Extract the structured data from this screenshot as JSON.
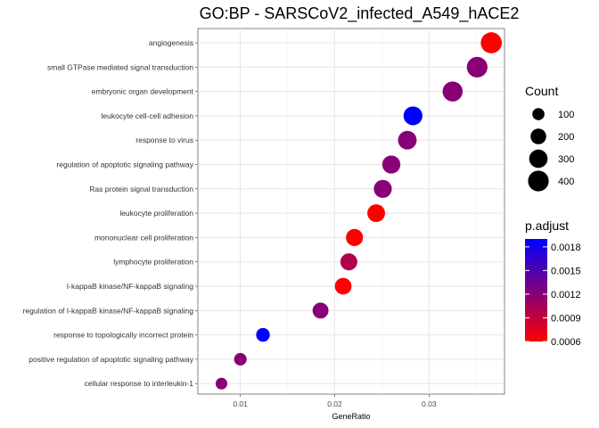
{
  "chart_data": {
    "type": "scatter",
    "title": "GO:BP - SARSCoV2_infected_A549_hACE2",
    "xlabel": "GeneRatio",
    "ylabel": "",
    "xlim": [
      0.0055,
      0.038
    ],
    "x_ticks": [
      0.01,
      0.02,
      0.03
    ],
    "x_tick_labels": [
      "0.01",
      "0.02",
      "0.03"
    ],
    "grid": true,
    "categories": [
      "angiogenesis",
      "small GTPase mediated signal transduction",
      "embryonic organ development",
      "leukocyte cell-cell adhesion",
      "response to virus",
      "regulation of apoptotic signaling pathway",
      "Ras protein signal transduction",
      "leukocyte proliferation",
      "mononuclear cell proliferation",
      "lymphocyte proliferation",
      "I-kappaB kinase/NF-kappaB signaling",
      "regulation of I-kappaB kinase/NF-kappaB signaling",
      "response to topologically incorrect protein",
      "positive regulation of apoptotic signaling pathway",
      "cellular response to interleukin-1"
    ],
    "points": [
      {
        "term": "angiogenesis",
        "gene_ratio": 0.0366,
        "count": 420,
        "p_adjust": 0.0006
      },
      {
        "term": "small GTPase mediated signal transduction",
        "gene_ratio": 0.0351,
        "count": 400,
        "p_adjust": 0.0012
      },
      {
        "term": "embryonic organ development",
        "gene_ratio": 0.0325,
        "count": 370,
        "p_adjust": 0.0012
      },
      {
        "term": "leukocyte cell-cell adhesion",
        "gene_ratio": 0.0283,
        "count": 320,
        "p_adjust": 0.0019
      },
      {
        "term": "response to virus",
        "gene_ratio": 0.0277,
        "count": 310,
        "p_adjust": 0.0012
      },
      {
        "term": "regulation of apoptotic signaling pathway",
        "gene_ratio": 0.026,
        "count": 290,
        "p_adjust": 0.0012
      },
      {
        "term": "Ras protein signal transduction",
        "gene_ratio": 0.0251,
        "count": 285,
        "p_adjust": 0.0012
      },
      {
        "term": "leukocyte proliferation",
        "gene_ratio": 0.0244,
        "count": 275,
        "p_adjust": 0.0006
      },
      {
        "term": "mononuclear cell proliferation",
        "gene_ratio": 0.0221,
        "count": 250,
        "p_adjust": 0.0006
      },
      {
        "term": "lymphocyte proliferation",
        "gene_ratio": 0.0215,
        "count": 245,
        "p_adjust": 0.001
      },
      {
        "term": "I-kappaB kinase/NF-kappaB signaling",
        "gene_ratio": 0.0209,
        "count": 235,
        "p_adjust": 0.0006
      },
      {
        "term": "regulation of I-kappaB kinase/NF-kappaB signaling",
        "gene_ratio": 0.0185,
        "count": 210,
        "p_adjust": 0.0012
      },
      {
        "term": "response to topologically incorrect protein",
        "gene_ratio": 0.0124,
        "count": 140,
        "p_adjust": 0.0019
      },
      {
        "term": "positive regulation of apoptotic signaling pathway",
        "gene_ratio": 0.01,
        "count": 110,
        "p_adjust": 0.0012
      },
      {
        "term": "cellular response to interleukin-1",
        "gene_ratio": 0.008,
        "count": 90,
        "p_adjust": 0.0012
      }
    ],
    "size_legend": {
      "title": "Count",
      "values": [
        100,
        200,
        300,
        400
      ],
      "labels": [
        "100",
        "200",
        "300",
        "400"
      ]
    },
    "color_legend": {
      "title": "p.adjust",
      "range": [
        0.0006,
        0.0019
      ],
      "ticks": [
        0.0006,
        0.0009,
        0.0012,
        0.0015,
        0.0018
      ],
      "tick_labels": [
        "0.0006",
        "0.0009",
        "0.0012",
        "0.0015",
        "0.0018"
      ],
      "low_color": "#ff0000",
      "high_color": "#0000ff"
    },
    "legend_placement": "right"
  }
}
